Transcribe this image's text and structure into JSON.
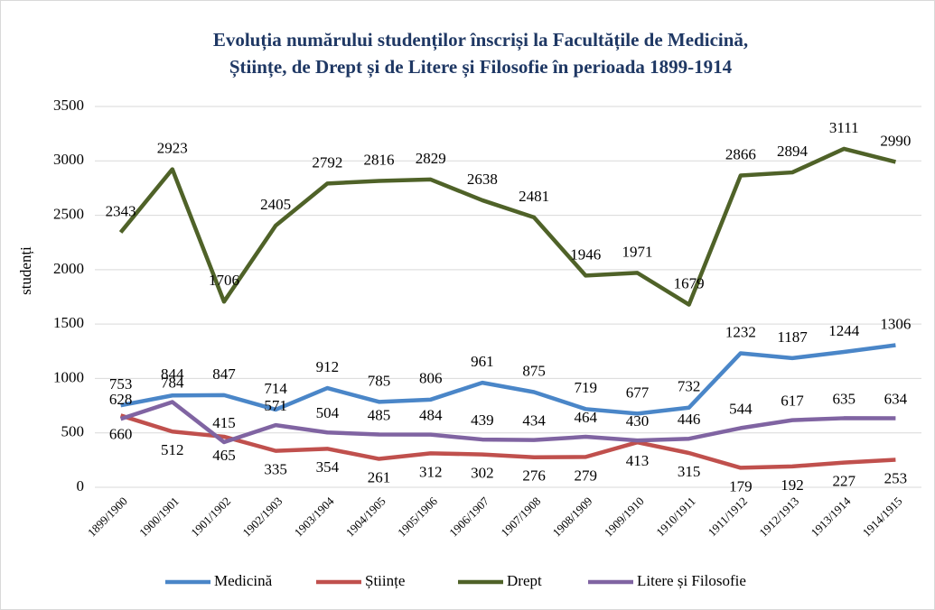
{
  "chart_data": {
    "type": "line",
    "title": [
      "Evoluția numărului studenților înscriși la Facultățile de Medicină,",
      "Științe, de Drept și de Litere și Filosofie în perioada 1899-1914"
    ],
    "y_label": "studenți",
    "categories": [
      "1899/1900",
      "1900/1901",
      "1901/1902",
      "1902/1903",
      "1903/1904",
      "1904/1905",
      "1905/1906",
      "1906/1907",
      "1907/1908",
      "1908/1909",
      "1909/1910",
      "1910/1911",
      "1911/1912",
      "1912/1913",
      "1913/1914",
      "1914/1915"
    ],
    "series": [
      {
        "name": "Medicină",
        "color": "#4a86c8",
        "values": [
          753,
          844,
          847,
          714,
          912,
          785,
          806,
          961,
          875,
          719,
          677,
          732,
          1232,
          1187,
          1244,
          1306
        ]
      },
      {
        "name": "Științe",
        "color": "#c0504d",
        "values": [
          660,
          512,
          465,
          335,
          354,
          261,
          312,
          302,
          276,
          279,
          413,
          315,
          179,
          192,
          227,
          253
        ]
      },
      {
        "name": "Drept",
        "color": "#4f6228",
        "values": [
          2343,
          2923,
          1706,
          2405,
          2792,
          2816,
          2829,
          2638,
          2481,
          1946,
          1971,
          1679,
          2866,
          2894,
          3111,
          2990
        ]
      },
      {
        "name": "Litere și Filosofie",
        "color": "#8064a2",
        "values": [
          628,
          784,
          415,
          571,
          504,
          485,
          484,
          439,
          434,
          464,
          430,
          446,
          544,
          617,
          635,
          634
        ]
      }
    ],
    "ylim": [
      0,
      3500
    ],
    "yticks": [
      0,
      500,
      1000,
      1500,
      2000,
      2500,
      3000,
      3500
    ],
    "grid": true,
    "legend": "bottom"
  }
}
